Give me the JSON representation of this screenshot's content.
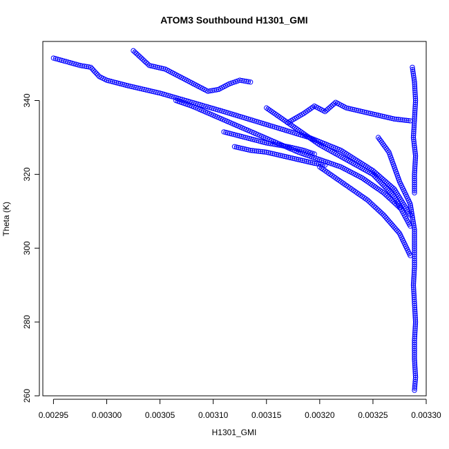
{
  "chart_data": {
    "type": "scatter",
    "title": "ATOM3 Southbound H1301_GMI",
    "xlabel": "H1301_GMI",
    "ylabel": "Theta (K)",
    "xlim": [
      0.00294,
      0.0033
    ],
    "ylim": [
      260,
      356
    ],
    "xticks": [
      "0.00295",
      "0.00300",
      "0.00305",
      "0.00310",
      "0.00315",
      "0.00320",
      "0.00325",
      "0.00330"
    ],
    "yticks": [
      "260",
      "280",
      "300",
      "320",
      "340"
    ],
    "marker": "open-circle",
    "color": "#0000ff",
    "series_note": "dense southbound profile points",
    "segments": [
      {
        "x": [
          0.00295,
          0.002975,
          0.002985,
          0.002993,
          0.003,
          0.00302,
          0.00305,
          0.00308,
          0.00311,
          0.00315,
          0.00319,
          0.00322,
          0.00325,
          0.00327,
          0.003285
        ],
        "y": [
          351.5,
          349.5,
          349.0,
          346.5,
          345.5,
          344.0,
          342.0,
          339.5,
          337.0,
          333.5,
          330.0,
          326.5,
          321.0,
          316.0,
          309.0
        ]
      },
      {
        "x": [
          0.003025,
          0.00304,
          0.003055,
          0.003065,
          0.003075,
          0.003085,
          0.003095,
          0.003105,
          0.003115,
          0.003125,
          0.003135
        ],
        "y": [
          353.5,
          349.5,
          348.5,
          347.0,
          345.5,
          344.0,
          342.5,
          343.0,
          344.5,
          345.5,
          345.0
        ]
      },
      {
        "x": [
          0.003065,
          0.00308,
          0.0031,
          0.00312,
          0.00314,
          0.00316,
          0.00318,
          0.0032,
          0.00322,
          0.00324,
          0.00326,
          0.003275
        ],
        "y": [
          340.0,
          338.5,
          336.0,
          333.5,
          331.0,
          328.5,
          326.0,
          324.0,
          322.0,
          319.0,
          315.0,
          311.0
        ]
      },
      {
        "x": [
          0.00312,
          0.003135,
          0.00315,
          0.003165,
          0.00318,
          0.003195,
          0.003205
        ],
        "y": [
          327.5,
          326.5,
          326.0,
          325.0,
          324.0,
          323.0,
          322.5
        ]
      },
      {
        "x": [
          0.00311,
          0.00313,
          0.00315,
          0.00317,
          0.003185,
          0.003195
        ],
        "y": [
          331.5,
          330.0,
          328.5,
          327.5,
          326.5,
          325.5
        ]
      },
      {
        "x": [
          0.00317,
          0.003185,
          0.003195,
          0.003205,
          0.003215,
          0.003225,
          0.00324,
          0.003255,
          0.00327,
          0.003285
        ],
        "y": [
          334.0,
          336.5,
          338.5,
          337.0,
          339.5,
          338.0,
          337.0,
          336.0,
          335.0,
          334.5
        ]
      },
      {
        "x": [
          0.0032,
          0.003215,
          0.00323,
          0.003245,
          0.00326,
          0.003275,
          0.003285
        ],
        "y": [
          322.0,
          319.0,
          316.0,
          313.0,
          309.0,
          304.0,
          298.0
        ]
      },
      {
        "x": [
          0.00315,
          0.003175,
          0.0032,
          0.003225,
          0.00325,
          0.00327,
          0.003285
        ],
        "y": [
          338.0,
          333.0,
          328.0,
          324.0,
          320.0,
          314.0,
          306.0
        ]
      },
      {
        "x": [
          0.003255,
          0.003265,
          0.003275,
          0.003285,
          0.003289,
          0.003289,
          0.003289,
          0.003288,
          0.003289,
          0.00329,
          0.003289,
          0.003289,
          0.00329,
          0.003289
        ],
        "y": [
          330.0,
          326.0,
          318.0,
          312.0,
          305.0,
          300.0,
          295.0,
          290.0,
          285.0,
          280.0,
          275.0,
          270.0,
          265.0,
          261.5
        ]
      },
      {
        "x": [
          0.003287,
          0.003289,
          0.00329,
          0.003289,
          0.003288,
          0.00329,
          0.003289,
          0.003289
        ],
        "y": [
          349.0,
          345.0,
          340.0,
          335.0,
          330.0,
          325.0,
          320.0,
          315.0
        ]
      }
    ]
  }
}
